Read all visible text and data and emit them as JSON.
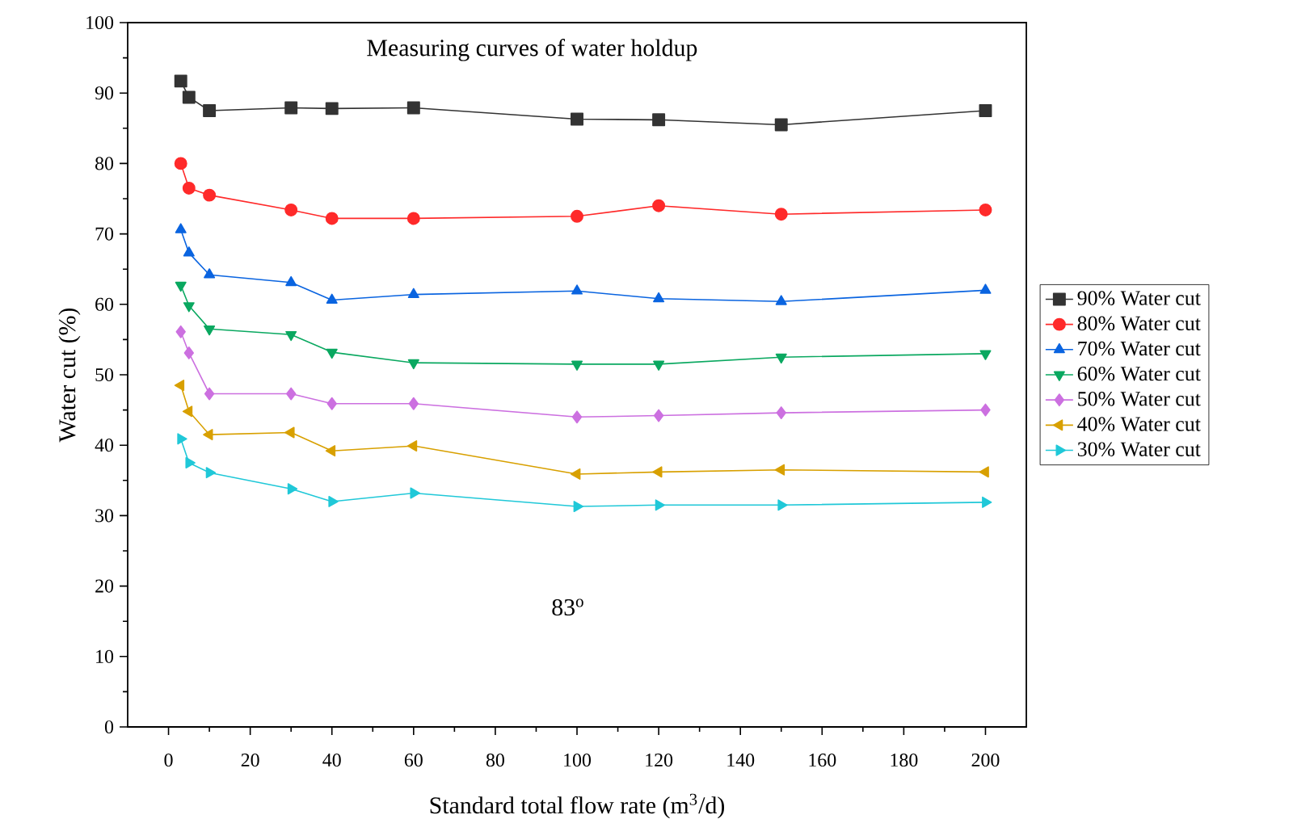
{
  "chart_data": {
    "type": "line",
    "title": "Measuring curves of water holdup",
    "xlabel": "Standard total flow rate (m$^{3}$/d)",
    "ylabel": "Water cut (%)",
    "x": [
      3,
      5,
      10,
      30,
      40,
      60,
      100,
      120,
      150,
      200
    ],
    "xlim": [
      -10,
      210
    ],
    "xticks": [
      0,
      20,
      40,
      60,
      80,
      100,
      120,
      140,
      160,
      180,
      200
    ],
    "ylim": [
      0,
      100
    ],
    "yticks": [
      0,
      10,
      20,
      30,
      40,
      50,
      60,
      70,
      80,
      90,
      100
    ],
    "grid": false,
    "legend": "right",
    "line_style": "solid",
    "annotations": [
      "83$^{o}$"
    ],
    "series": [
      {
        "name": "90% Water cut",
        "color": "#333333",
        "marker": "square",
        "values": [
          91.7,
          89.4,
          87.5,
          87.9,
          87.8,
          87.9,
          86.3,
          86.2,
          85.5,
          87.5
        ]
      },
      {
        "name": "80% Water cut",
        "color": "#ff2a2a",
        "marker": "circle",
        "values": [
          80,
          76.5,
          75.5,
          73.4,
          72.2,
          72.2,
          72.5,
          74,
          72.8,
          73.4
        ]
      },
      {
        "name": "70% Water cut",
        "color": "#0a64e0",
        "marker": "triangle",
        "values": [
          70.6,
          67.3,
          64.2,
          63.1,
          60.6,
          61.4,
          61.9,
          60.8,
          60.4,
          62
        ]
      },
      {
        "name": "60% Water cut",
        "color": "#0aa860",
        "marker": "triangle down",
        "values": [
          62.7,
          59.8,
          56.5,
          55.7,
          53.2,
          51.7,
          51.5,
          51.5,
          52.5,
          53
        ]
      },
      {
        "name": "50% Water cut",
        "color": "#cc70e0",
        "marker": "diamond",
        "values": [
          56.1,
          53.1,
          47.3,
          47.3,
          45.9,
          45.9,
          44,
          44.2,
          44.6,
          45
        ]
      },
      {
        "name": "40% Water cut",
        "color": "#d8a000",
        "marker": "triangle left",
        "values": [
          48.5,
          44.8,
          41.5,
          41.8,
          39.2,
          39.9,
          35.9,
          36.2,
          36.5,
          36.2
        ]
      },
      {
        "name": "30% Water cut",
        "color": "#20c8d8",
        "marker": "triangle right",
        "values": [
          40.9,
          37.5,
          36.1,
          33.8,
          32,
          33.2,
          31.3,
          31.5,
          31.5,
          31.9
        ]
      }
    ]
  }
}
